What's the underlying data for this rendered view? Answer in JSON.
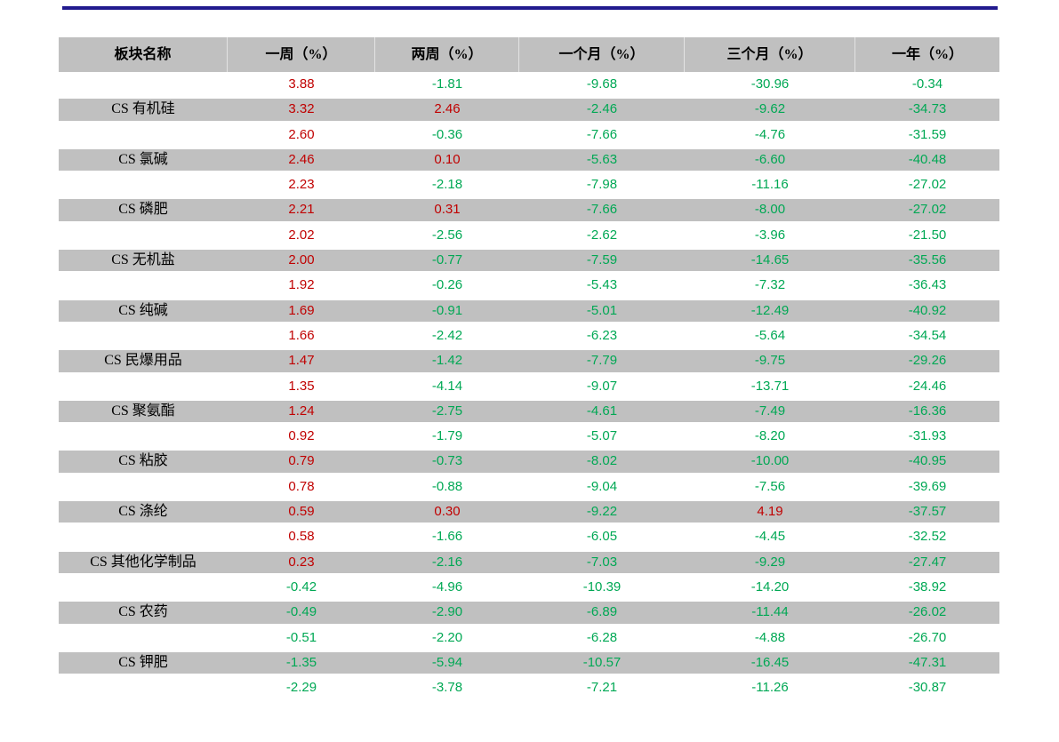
{
  "styles": {
    "top_rule_color": "#211a8e",
    "band_color": "#c0c0c0",
    "positive_color": "#c00000",
    "negative_color": "#00a854"
  },
  "chart_data": {
    "type": "table",
    "columns": [
      "板块名称",
      "一周（%）",
      "两周（%）",
      "一个月（%）",
      "三个月（%）",
      "一年（%）"
    ],
    "rows": [
      {
        "name": "",
        "values": [
          "3.88",
          "-1.81",
          "-9.68",
          "-30.96",
          "-0.34"
        ]
      },
      {
        "name": "CS 有机硅",
        "values": [
          "3.32",
          "2.46",
          "-2.46",
          "-9.62",
          "-34.73"
        ]
      },
      {
        "name": "",
        "values": [
          "2.60",
          "-0.36",
          "-7.66",
          "-4.76",
          "-31.59"
        ]
      },
      {
        "name": "CS 氯碱",
        "values": [
          "2.46",
          "0.10",
          "-5.63",
          "-6.60",
          "-40.48"
        ]
      },
      {
        "name": "",
        "values": [
          "2.23",
          "-2.18",
          "-7.98",
          "-11.16",
          "-27.02"
        ]
      },
      {
        "name": "CS 磷肥",
        "values": [
          "2.21",
          "0.31",
          "-7.66",
          "-8.00",
          "-27.02"
        ]
      },
      {
        "name": "",
        "values": [
          "2.02",
          "-2.56",
          "-2.62",
          "-3.96",
          "-21.50"
        ]
      },
      {
        "name": "CS 无机盐",
        "values": [
          "2.00",
          "-0.77",
          "-7.59",
          "-14.65",
          "-35.56"
        ]
      },
      {
        "name": "",
        "values": [
          "1.92",
          "-0.26",
          "-5.43",
          "-7.32",
          "-36.43"
        ]
      },
      {
        "name": "CS 纯碱",
        "values": [
          "1.69",
          "-0.91",
          "-5.01",
          "-12.49",
          "-40.92"
        ]
      },
      {
        "name": "",
        "values": [
          "1.66",
          "-2.42",
          "-6.23",
          "-5.64",
          "-34.54"
        ]
      },
      {
        "name": "CS 民爆用品",
        "values": [
          "1.47",
          "-1.42",
          "-7.79",
          "-9.75",
          "-29.26"
        ]
      },
      {
        "name": "",
        "values": [
          "1.35",
          "-4.14",
          "-9.07",
          "-13.71",
          "-24.46"
        ]
      },
      {
        "name": "CS 聚氨酯",
        "values": [
          "1.24",
          "-2.75",
          "-4.61",
          "-7.49",
          "-16.36"
        ]
      },
      {
        "name": "",
        "values": [
          "0.92",
          "-1.79",
          "-5.07",
          "-8.20",
          "-31.93"
        ]
      },
      {
        "name": "CS 粘胶",
        "values": [
          "0.79",
          "-0.73",
          "-8.02",
          "-10.00",
          "-40.95"
        ]
      },
      {
        "name": "",
        "values": [
          "0.78",
          "-0.88",
          "-9.04",
          "-7.56",
          "-39.69"
        ]
      },
      {
        "name": "CS 涤纶",
        "values": [
          "0.59",
          "0.30",
          "-9.22",
          "4.19",
          "-37.57"
        ]
      },
      {
        "name": "",
        "values": [
          "0.58",
          "-1.66",
          "-6.05",
          "-4.45",
          "-32.52"
        ]
      },
      {
        "name": "CS 其他化学制品",
        "values": [
          "0.23",
          "-2.16",
          "-7.03",
          "-9.29",
          "-27.47"
        ]
      },
      {
        "name": "",
        "values": [
          "-0.42",
          "-4.96",
          "-10.39",
          "-14.20",
          "-38.92"
        ]
      },
      {
        "name": "CS 农药",
        "values": [
          "-0.49",
          "-2.90",
          "-6.89",
          "-11.44",
          "-26.02"
        ]
      },
      {
        "name": "",
        "values": [
          "-0.51",
          "-2.20",
          "-6.28",
          "-4.88",
          "-26.70"
        ]
      },
      {
        "name": "CS 钾肥",
        "values": [
          "-1.35",
          "-5.94",
          "-10.57",
          "-16.45",
          "-47.31"
        ]
      },
      {
        "name": "",
        "values": [
          "-2.29",
          "-3.78",
          "-7.21",
          "-11.26",
          "-30.87"
        ]
      }
    ]
  }
}
